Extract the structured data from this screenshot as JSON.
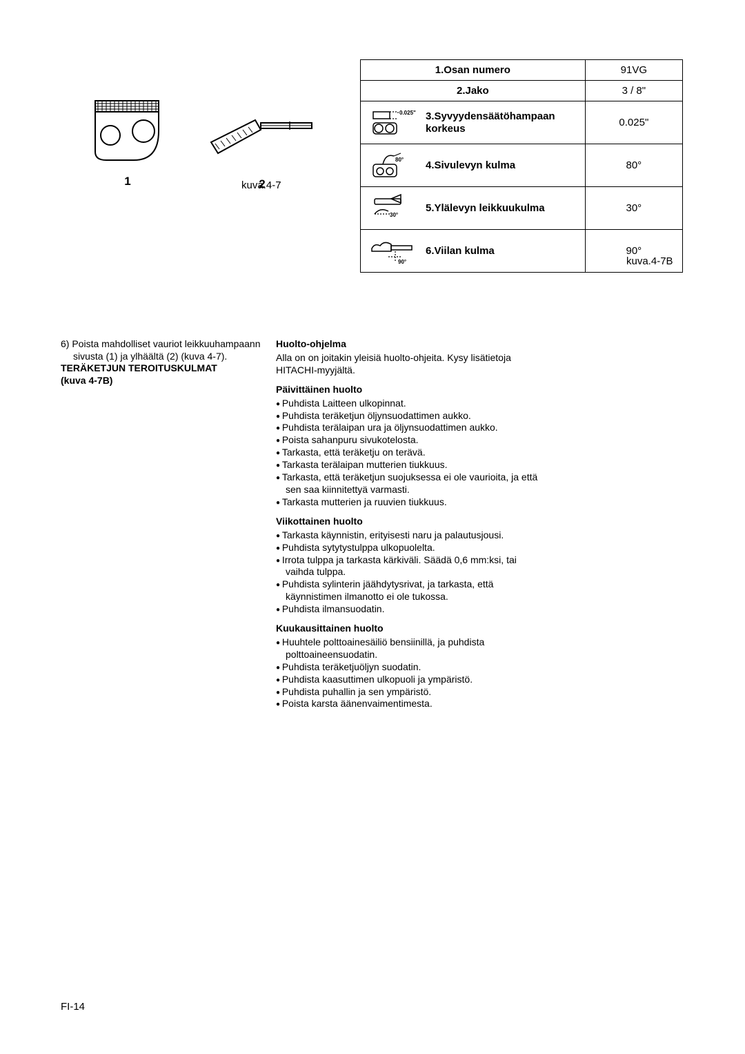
{
  "table": {
    "rows": [
      {
        "label": "1.Osan numero",
        "value": "91VG",
        "tall": false,
        "icon": null
      },
      {
        "label": "2.Jako",
        "value": "3 / 8\"",
        "tall": false,
        "icon": null
      },
      {
        "label": "3.Syvyydensäätöhampaan korkeus",
        "value": "0.025\"",
        "tall": true,
        "icon": "depth",
        "icon_text": "0.025\""
      },
      {
        "label": "4.Sivulevyn kulma",
        "value": "80°",
        "tall": true,
        "icon": "side",
        "icon_text": "80°"
      },
      {
        "label": "5.Ylälevyn leikkuukulma",
        "value": "30°",
        "tall": true,
        "icon": "top",
        "icon_text": "30°"
      },
      {
        "label": "6.Viilan kulma",
        "value": "90°",
        "tall": true,
        "icon": "file",
        "icon_text": "90°"
      }
    ],
    "caption": "kuva.4-7B"
  },
  "figures": {
    "num1": "1",
    "num2": "2",
    "caption": "kuva.4-7"
  },
  "left_col": {
    "line1": "6) Poista mahdolliset vauriot leikkuuhampaann",
    "line2": "sivusta (1) ja ylhäältä (2) (kuva 4-7).",
    "line3": "TERÄKETJUN TEROITUSKULMAT",
    "line4": "(kuva 4-7B)"
  },
  "right_col": {
    "h1": "Huolto-ohjelma",
    "p1": "Alla on on joitakin yleisiä huolto-ohjeita. Kysy lisätietoja HITACHI-myyjältä.",
    "h2": "Päivittäinen huolto",
    "daily": [
      "Puhdista Laitteen ulkopinnat.",
      "Puhdista teräketjun öljynsuodattimen aukko.",
      "Puhdista terälaipan ura ja öljynsuodattimen aukko.",
      "Poista sahanpuru sivukotelosta.",
      "Tarkasta, että teräketju on terävä.",
      "Tarkasta terälaipan mutterien tiukkuus.",
      "Tarkasta, että teräketjun suojuksessa ei ole vaurioita, ja että sen saa kiinnitettyä varmasti.",
      "Tarkasta mutterien ja ruuvien tiukkuus."
    ],
    "h3": "Viikottainen huolto",
    "weekly": [
      "Tarkasta käynnistin, erityisesti naru ja palautusjousi.",
      "Puhdista sytytystulppa ulkopuolelta.",
      "Irrota tulppa ja tarkasta kärkiväli. Säädä 0,6 mm:ksi, tai vaihda tulppa.",
      "Puhdista sylinterin jäähdytysrivat, ja tarkasta, että käynnistimen ilmanotto ei ole tukossa.",
      "Puhdista ilmansuodatin."
    ],
    "h4": "Kuukausittainen huolto",
    "monthly": [
      "Huuhtele polttoainesäiliö bensiinillä, ja puhdista polttoaineensuodatin.",
      "Puhdista teräketjuöljyn suodatin.",
      "Puhdista kaasuttimen ulkopuoli ja ympäristö.",
      "Puhdista puhallin ja sen ympäristö.",
      "Poista karsta äänenvaimentimesta."
    ]
  },
  "page_number": "FI-14"
}
